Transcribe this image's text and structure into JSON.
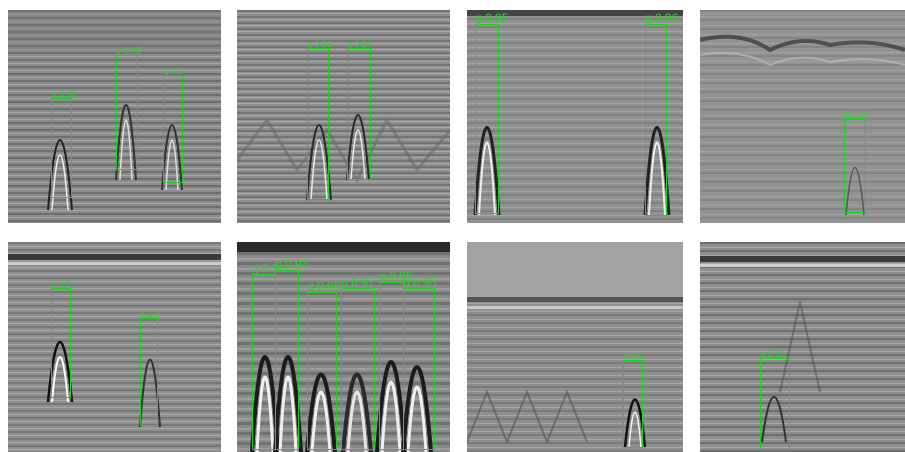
{
  "panels": [
    {
      "detections": [
        {
          "label": "g 0.93"
        },
        {
          "label": "g 0.95"
        },
        {
          "label": "g 0.9"
        }
      ]
    },
    {
      "detections": [
        {
          "label": "g 0.93"
        },
        {
          "label": "g 0.94"
        }
      ]
    },
    {
      "detections": [
        {
          "label": "g 0.95"
        },
        {
          "label": "g 0.96"
        }
      ]
    },
    {
      "detections": [
        {
          "label": "g 0.96"
        }
      ]
    },
    {
      "detections": [
        {
          "label": "g 0.9"
        },
        {
          "label": "g 0.9"
        }
      ]
    },
    {
      "detections": [
        {
          "label": "g 0.9"
        },
        {
          "label": "g 0.93"
        },
        {
          "label": "g 0.96"
        },
        {
          "label": "g 0.97"
        },
        {
          "label": "g 0.86"
        },
        {
          "label": "g 0.93"
        }
      ]
    },
    {
      "detections": [
        {
          "label": "g 0.9"
        }
      ]
    },
    {
      "detections": [
        {
          "label": "g 0.95"
        }
      ]
    }
  ]
}
